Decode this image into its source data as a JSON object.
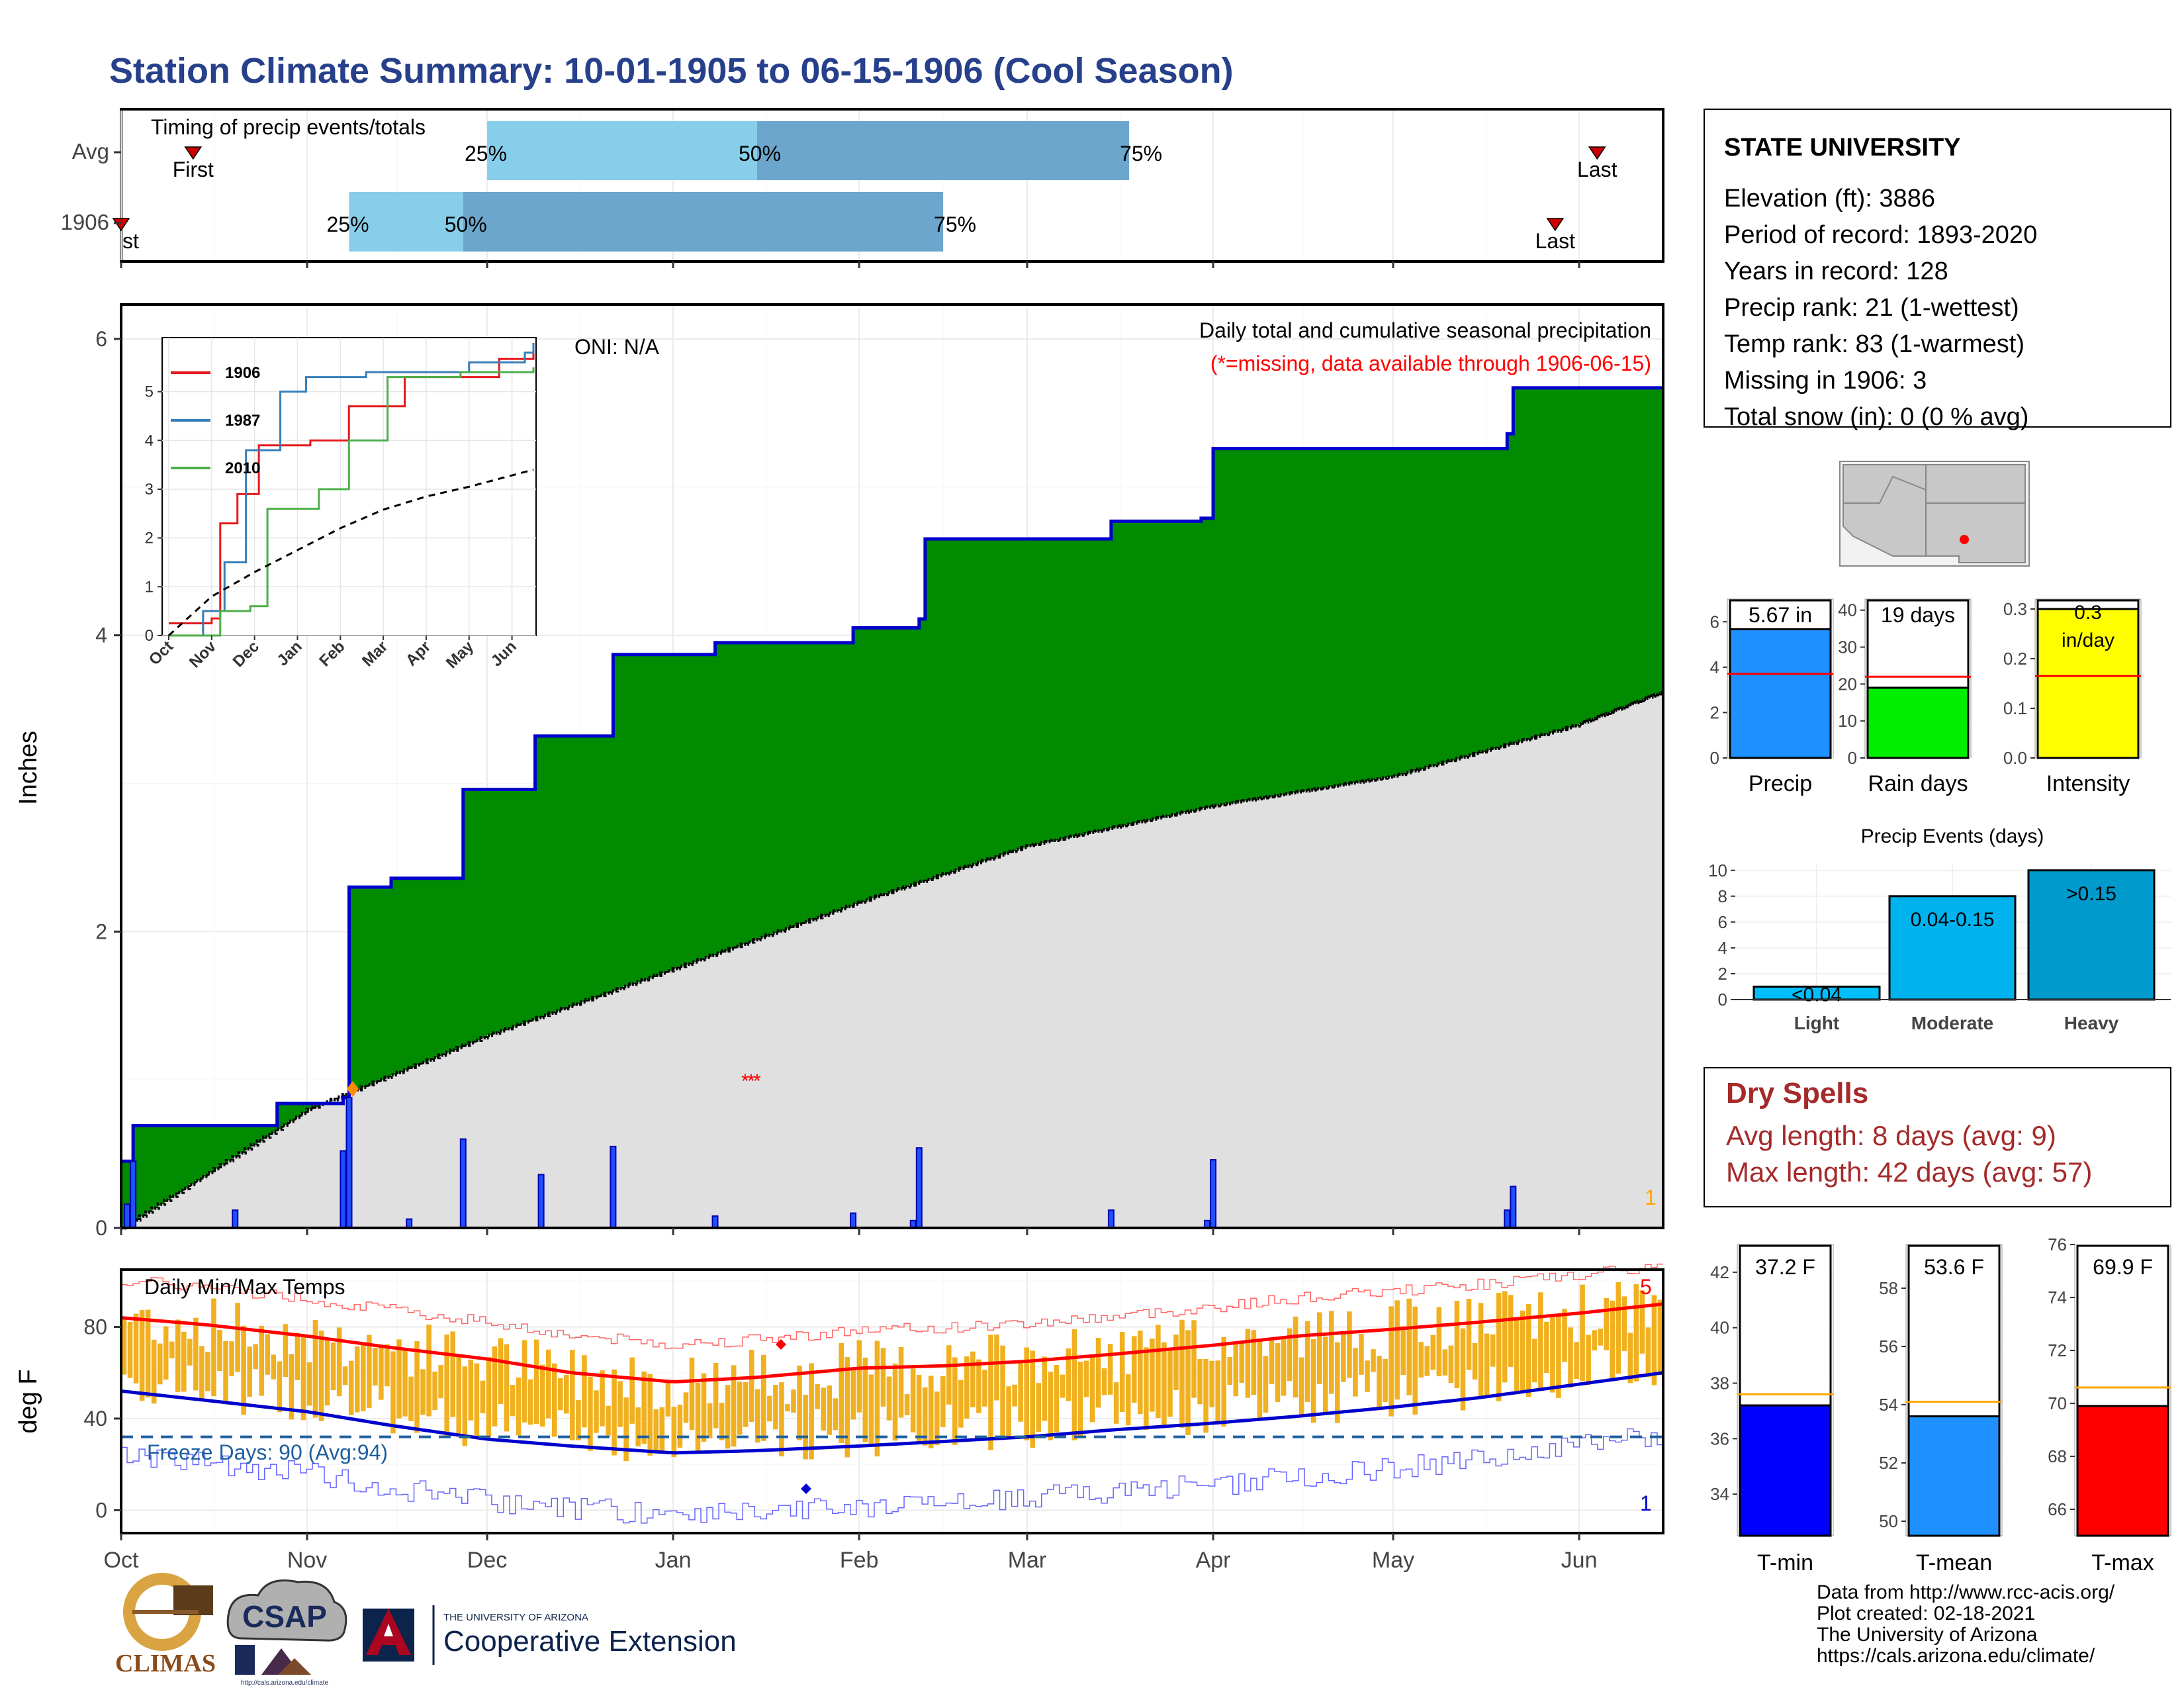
{
  "page": {
    "title": "Station Climate Summary: 10-01-1905 to 06-15-1906 (Cool Season)",
    "title_color": "#27408b"
  },
  "timing": {
    "title": "Timing of precip events/totals",
    "rows": [
      {
        "label": "Avg",
        "first": "First",
        "last": "Last",
        "first_date": "1905-10-13",
        "last_date": "1906-06-04",
        "p25": "1905-12-01",
        "p50": "1906-01-15",
        "p75": "1906-03-18"
      },
      {
        "label": "1906",
        "first": "First",
        "last": "Last",
        "first_date": "1905-10-01",
        "last_date": "1906-05-28",
        "p25": "1905-11-08",
        "p50": "1905-11-27",
        "p75": "1906-02-15"
      }
    ],
    "pct_labels": [
      "25%",
      "50%",
      "75%"
    ],
    "colors": {
      "q1": "#87ceeb",
      "q2": "#6ca6cd",
      "marker": "#cc0000"
    }
  },
  "precip_panel": {
    "ylabel": "Inches",
    "header": "Daily total and cumulative seasonal precipitation",
    "missing_note": "(*=missing, data available through 1906-06-15)",
    "oni": "ONI: N/A",
    "corner_count": "1",
    "yticks": [
      "0",
      "2",
      "4",
      "6"
    ],
    "colors": {
      "cum": "#008b00",
      "avg": "#e0e0e0",
      "line": "#0000cd",
      "bars": "#1e50ff",
      "missing": "#ff0000"
    }
  },
  "inset": {
    "legend": [
      "1906",
      "1987",
      "2010"
    ],
    "legend_colors": [
      "#e41a1c",
      "#377eb8",
      "#4daf4a"
    ],
    "yticks": [
      "0",
      "1",
      "2",
      "3",
      "4",
      "5"
    ],
    "months": [
      "Oct",
      "Nov",
      "Dec",
      "Jan",
      "Feb",
      "Mar",
      "Apr",
      "May",
      "Jun"
    ]
  },
  "temp_panel": {
    "title": "Daily Min/Max Temps",
    "ylabel": "deg F",
    "freeze": "Freeze Days: 90 (Avg:94)",
    "yticks": [
      "0",
      "40",
      "80"
    ],
    "count_high": "5",
    "count_low": "1",
    "colors": {
      "bars": "#f0b020",
      "max_avg": "#ff0000",
      "min_avg": "#0000cd",
      "freeze": "#1f5f9f"
    }
  },
  "months": [
    "Oct",
    "Nov",
    "Dec",
    "Jan",
    "Feb",
    "Mar",
    "Apr",
    "May",
    "Jun"
  ],
  "station": {
    "name": "STATE UNIVERSITY",
    "lines": [
      "Elevation (ft): 3886",
      "Period of record: 1893-2020",
      "Years in record: 128",
      "Precip rank: 21 (1-wettest)",
      "Temp rank: 83 (1-warmest)",
      "Missing in 1906: 3",
      "Total snow (in): 0 (0 % avg)"
    ]
  },
  "minibars": [
    {
      "label": "Precip",
      "value_text": "5.67 in",
      "value": 5.67,
      "avg": 3.7,
      "ymax": 7,
      "yticks": [
        "0",
        "2",
        "4",
        "6"
      ],
      "tickvals": [
        0,
        2,
        4,
        6
      ],
      "color": "#1e90ff"
    },
    {
      "label": "Rain days",
      "value_text": "19 days",
      "value": 19,
      "avg": 22,
      "ymax": 43,
      "yticks": [
        "0",
        "10",
        "20",
        "30",
        "40"
      ],
      "tickvals": [
        0,
        10,
        20,
        30,
        40
      ],
      "color": "#00ee00"
    },
    {
      "label": "Intensity",
      "value_text": "0.3 in/day",
      "value": 0.3,
      "avg": 0.165,
      "ymax": 0.32,
      "yticks": [
        "0.0",
        "0.1",
        "0.2",
        "0.3"
      ],
      "tickvals": [
        0,
        0.1,
        0.2,
        0.3
      ],
      "color": "#ffff00"
    }
  ],
  "events": {
    "title": "Precip Events (days)",
    "categories": [
      "Light",
      "Moderate",
      "Heavy"
    ],
    "values": [
      1,
      8,
      10
    ],
    "labels": [
      "<0.04",
      "0.04-0.15",
      ">0.15"
    ],
    "yticks": [
      "0",
      "2",
      "4",
      "6",
      "8",
      "10"
    ],
    "colors": [
      "#00bfff",
      "#00b2ee",
      "#009acd"
    ]
  },
  "dry_spells": {
    "title": "Dry Spells",
    "avg": "Avg length: 8 days (avg: 9)",
    "max": "Max length: 42 days (avg: 57)",
    "color": "#a52a2a"
  },
  "tempbars": [
    {
      "label": "T-min",
      "value_text": "37.2 F",
      "value": 37.2,
      "avg": 37.6,
      "ymin": 32.5,
      "ymax": 43,
      "yticks": [
        "34",
        "36",
        "38",
        "40",
        "42"
      ],
      "tickvals": [
        34,
        36,
        38,
        40,
        42
      ],
      "color": "#0000ff"
    },
    {
      "label": "T-mean",
      "value_text": "53.6 F",
      "value": 53.6,
      "avg": 54.1,
      "ymin": 49.5,
      "ymax": 59.5,
      "yticks": [
        "50",
        "52",
        "54",
        "56",
        "58"
      ],
      "tickvals": [
        50,
        52,
        54,
        56,
        58
      ],
      "color": "#1e90ff"
    },
    {
      "label": "T-max",
      "value_text": "69.9 F",
      "value": 69.9,
      "avg": 70.6,
      "ymin": 65,
      "ymax": 76,
      "yticks": [
        "66",
        "68",
        "70",
        "72",
        "74",
        "76"
      ],
      "tickvals": [
        66,
        68,
        70,
        72,
        74,
        76
      ],
      "color": "#ff0000"
    }
  ],
  "logos": {
    "climas": "CLIMAS",
    "csap": "CSAP",
    "csap_url": "http://cals.arizona.edu/climate",
    "ua_small": "THE UNIVERSITY OF ARIZONA",
    "ua_big": "Cooperative Extension"
  },
  "footer": [
    "Data from http://www.rcc-acis.org/",
    "Plot created: 02-18-2021",
    "The University of Arizona",
    "https://cals.arizona.edu/climate/"
  ],
  "chart_data": {
    "type": "area",
    "title": "Daily total and cumulative seasonal precipitation",
    "ylabel": "Inches",
    "ylim": [
      0,
      6.2
    ],
    "cumulative_1906": {
      "dates": [
        "1905-10-01",
        "1905-10-03",
        "1905-10-16",
        "1905-10-27",
        "1905-11-07",
        "1905-11-08",
        "1905-11-15",
        "1905-11-27",
        "1905-12-09",
        "1905-12-22",
        "1906-01-08",
        "1906-01-31",
        "1906-02-11",
        "1906-02-12",
        "1906-03-15",
        "1906-03-30",
        "1906-04-01",
        "1906-05-20",
        "1906-05-21",
        "1906-06-15"
      ],
      "values": [
        0.45,
        0.69,
        0.69,
        0.84,
        0.88,
        2.3,
        2.36,
        2.96,
        3.32,
        3.87,
        3.95,
        4.05,
        4.11,
        4.65,
        4.77,
        4.79,
        5.26,
        5.36,
        5.67,
        5.67
      ]
    },
    "daily_1906": {
      "dates": [
        "1905-10-02",
        "1905-10-03",
        "1905-10-20",
        "1905-11-07",
        "1905-11-08",
        "1905-11-18",
        "1905-11-27",
        "1905-12-10",
        "1905-12-22",
        "1906-01-08",
        "1906-01-31",
        "1906-02-10",
        "1906-02-11",
        "1906-03-15",
        "1906-03-31",
        "1906-04-01",
        "1906-05-20",
        "1906-05-21"
      ],
      "values": [
        0.16,
        0.45,
        0.12,
        0.52,
        0.88,
        0.06,
        0.6,
        0.36,
        0.55,
        0.08,
        0.1,
        0.05,
        0.54,
        0.12,
        0.05,
        0.46,
        0.12,
        0.28
      ]
    },
    "avg_cumulative": {
      "dates": [
        "1905-10-01",
        "1905-11-01",
        "1905-12-01",
        "1906-01-01",
        "1906-02-01",
        "1906-03-01",
        "1906-04-01",
        "1906-05-01",
        "1906-06-01",
        "1906-06-15"
      ],
      "values": [
        0.0,
        0.8,
        1.3,
        1.75,
        2.2,
        2.58,
        2.85,
        3.05,
        3.4,
        3.62
      ]
    },
    "missing_dates": [
      "1906-01-13",
      "1906-01-14",
      "1906-01-15"
    ],
    "inset": {
      "type": "line",
      "series": [
        {
          "name": "1906",
          "points": [
            [
              0,
              0.25
            ],
            [
              1,
              0.35
            ],
            [
              1.2,
              2.3
            ],
            [
              1.6,
              2.9
            ],
            [
              2.1,
              3.9
            ],
            [
              3.3,
              4.0
            ],
            [
              4.2,
              4.7
            ],
            [
              5.5,
              5.3
            ],
            [
              7.7,
              5.67
            ],
            [
              8.5,
              6.0
            ]
          ]
        },
        {
          "name": "1987",
          "points": [
            [
              0,
              0.0
            ],
            [
              0.8,
              0.5
            ],
            [
              1.3,
              1.5
            ],
            [
              1.8,
              3.8
            ],
            [
              2.6,
              5.0
            ],
            [
              3.2,
              5.3
            ],
            [
              4.6,
              5.4
            ],
            [
              7.0,
              5.6
            ],
            [
              8.3,
              5.8
            ],
            [
              8.5,
              6.0
            ]
          ]
        },
        {
          "name": "2010",
          "points": [
            [
              0,
              0.0
            ],
            [
              1.2,
              0.5
            ],
            [
              1.9,
              0.6
            ],
            [
              2.3,
              2.6
            ],
            [
              3.5,
              3.0
            ],
            [
              4.2,
              4.0
            ],
            [
              5.1,
              5.3
            ],
            [
              6.8,
              5.4
            ],
            [
              8.5,
              5.5
            ]
          ]
        },
        {
          "name": "average",
          "points": [
            [
              0,
              0.0
            ],
            [
              1,
              0.8
            ],
            [
              2,
              1.3
            ],
            [
              3,
              1.75
            ],
            [
              4,
              2.2
            ],
            [
              5,
              2.58
            ],
            [
              6,
              2.85
            ],
            [
              7,
              3.05
            ],
            [
              8.5,
              3.4
            ]
          ]
        }
      ],
      "ylim": [
        0,
        6
      ]
    },
    "temps": {
      "ylim": [
        -10,
        105
      ],
      "max_avg": {
        "dates": [
          "1905-10-01",
          "1905-10-15",
          "1905-11-01",
          "1905-11-15",
          "1905-12-01",
          "1905-12-15",
          "1906-01-01",
          "1906-01-15",
          "1906-02-01",
          "1906-02-15",
          "1906-03-01",
          "1906-03-15",
          "1906-04-01",
          "1906-04-15",
          "1906-05-01",
          "1906-05-15",
          "1906-06-01",
          "1906-06-15"
        ],
        "values": [
          84,
          81,
          76,
          71,
          66,
          60,
          56,
          58,
          62,
          63,
          65,
          68,
          72,
          76,
          79,
          82,
          86,
          90
        ]
      },
      "min_avg": {
        "dates": [
          "1905-10-01",
          "1905-10-15",
          "1905-11-01",
          "1905-11-15",
          "1905-12-01",
          "1905-12-15",
          "1906-01-01",
          "1906-01-15",
          "1906-02-01",
          "1906-02-15",
          "1906-03-01",
          "1906-03-15",
          "1906-04-01",
          "1906-04-15",
          "1906-05-01",
          "1906-05-15",
          "1906-06-01",
          "1906-06-15"
        ],
        "values": [
          52,
          48,
          43,
          37,
          31,
          28,
          25,
          26,
          28,
          30,
          32,
          35,
          38,
          41,
          45,
          49,
          55,
          60
        ]
      },
      "freeze_line": 32
    },
    "precip_summary": {
      "categories": [
        "Precip",
        "Rain days",
        "Intensity"
      ],
      "values": [
        5.67,
        19,
        0.3
      ],
      "averages": [
        3.7,
        22,
        0.165
      ]
    },
    "temp_summary": {
      "categories": [
        "T-min",
        "T-mean",
        "T-max"
      ],
      "values": [
        37.2,
        53.6,
        69.9
      ],
      "averages": [
        37.6,
        54.1,
        70.6
      ]
    },
    "events": {
      "categories": [
        "Light",
        "Moderate",
        "Heavy"
      ],
      "values": [
        1,
        8,
        10
      ]
    }
  }
}
